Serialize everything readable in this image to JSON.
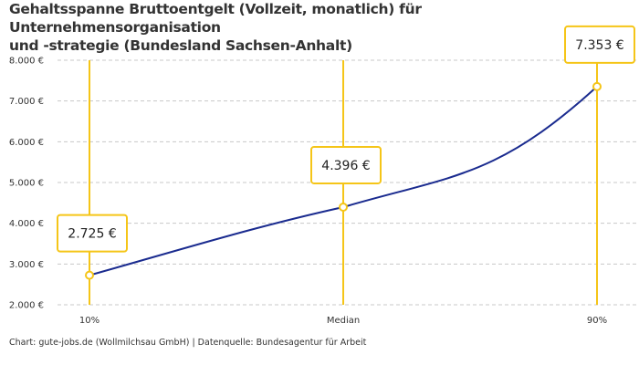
{
  "title_line1": "Gehaltsspanne Bruttoentgelt (Vollzeit, monatlich) für Unternehmensorganisation",
  "title_line2": "und -strategie (Bundesland Sachsen-Anhalt)",
  "footer": "Chart: gute-jobs.de (Wollmilchsau GmbH) | Datenquelle: Bundesagentur für Arbeit",
  "chart_data": {
    "type": "line",
    "categories": [
      "10%",
      "Median",
      "90%"
    ],
    "values": [
      2725,
      4396,
      7353
    ],
    "data_labels": [
      "2.725 €",
      "4.396 €",
      "7.353 €"
    ],
    "ylim": [
      2000,
      8000
    ],
    "yticks": [
      2000,
      3000,
      4000,
      5000,
      6000,
      7000,
      8000
    ],
    "ytick_labels": [
      "2.000 €",
      "3.000 €",
      "4.000 €",
      "5.000 €",
      "6.000 €",
      "7.000 €",
      "8.000 €"
    ],
    "grid": true,
    "colors": {
      "line": "#1a2b8f",
      "accent": "#f5c518",
      "grid": "#c8c8c8"
    }
  }
}
